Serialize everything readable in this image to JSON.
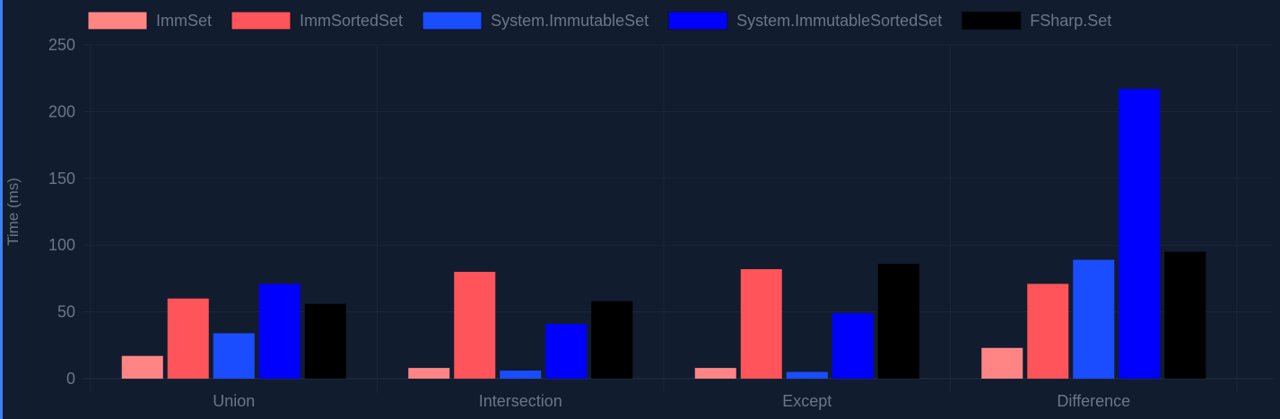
{
  "chart_data": {
    "type": "bar",
    "categories": [
      "Union",
      "Intersection",
      "Except",
      "Difference"
    ],
    "series": [
      {
        "name": "ImmSet",
        "color": "#ff8585",
        "values": [
          17,
          8,
          8,
          23
        ]
      },
      {
        "name": "ImmSortedSet",
        "color": "#ff5459",
        "values": [
          60,
          80,
          82,
          71
        ]
      },
      {
        "name": "System.ImmutableSet",
        "color": "#1a4dff",
        "values": [
          34,
          6,
          5,
          89
        ]
      },
      {
        "name": "System.ImmutableSortedSet",
        "color": "#0000ff",
        "values": [
          71,
          41,
          49,
          217
        ]
      },
      {
        "name": "FSharp.Set",
        "color": "#000000",
        "values": [
          56,
          58,
          86,
          95
        ]
      }
    ],
    "ylabel": "Time (ms)",
    "xlabel": "",
    "ylim": [
      0,
      250
    ],
    "yticks": [
      0,
      50,
      100,
      150,
      200,
      250
    ],
    "grid": true,
    "legend_position": "top"
  }
}
